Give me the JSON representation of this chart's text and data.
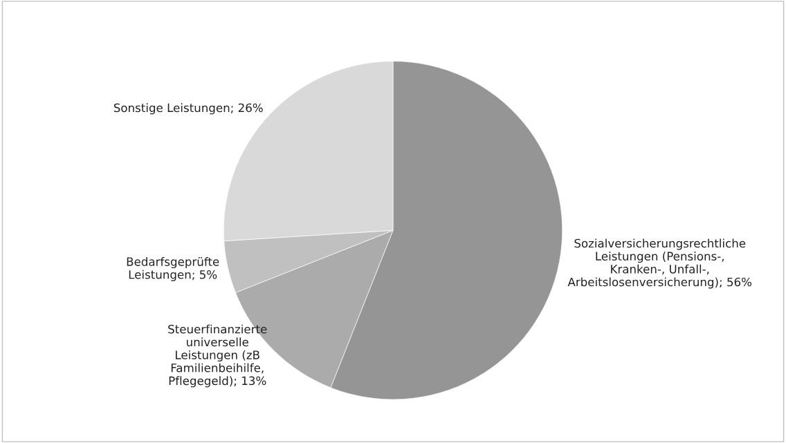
{
  "chart_data": {
    "type": "pie",
    "categories": [
      "Sozialversicherungsrechtliche\nLeistungen (Pensions-,\nKranken-, Unfall-,\nArbeitslosenversicherung)",
      "Steuerfinanzierte\nuniverselle\nLeistungen (zB\nFamilienbeihilfe,\nPflegegeld)",
      "Bedarfsgeprüfte\nLeistungen",
      "Sonstige Leistungen"
    ],
    "values": [
      56,
      13,
      5,
      26
    ],
    "colors": [
      "#959595",
      "#ababab",
      "#c0c0c0",
      "#d9d9d9"
    ],
    "value_labels": [
      "56%",
      "13%",
      "5%",
      "26%"
    ]
  }
}
